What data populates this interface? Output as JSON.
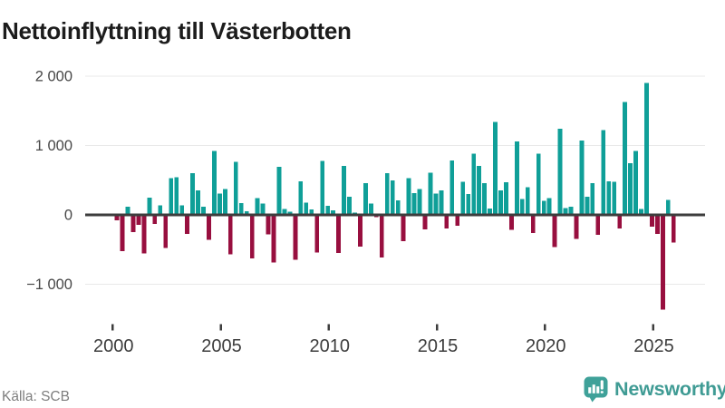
{
  "header": {
    "title": "Nettoinflyttning till Västerbotten"
  },
  "footer": {
    "source": "Källa: SCB",
    "brand": "Newsworthy"
  },
  "colors": {
    "positive": "#0f9f98",
    "negative": "#980f3f",
    "brand": "#3f9b94",
    "grid": "#e8e8e8",
    "zero_line": "#3d3d3d",
    "axis_text": "#424242",
    "title_text": "#1c1c1c",
    "source_text": "#7e7e7e"
  },
  "chart_data": {
    "type": "bar",
    "title": "Nettoinflyttning till Västerbotten",
    "ylabel": "",
    "xlabel": "",
    "unit": "net migration, persons per quarter",
    "frequency": "quarterly",
    "start": "2000 Q1",
    "end": "2025 Q4",
    "grid": true,
    "legend": false,
    "ylim": [
      -1500,
      2150
    ],
    "x_tick_labels": [
      "2000",
      "2005",
      "2010",
      "2015",
      "2020",
      "2025"
    ],
    "y_ticks": [
      {
        "value": 2000,
        "label": "2 000"
      },
      {
        "value": 1000,
        "label": "1 000"
      },
      {
        "value": 0,
        "label": "0"
      },
      {
        "value": -1000,
        "label": "−1 000"
      }
    ],
    "series_by_year": [
      {
        "year": 2000,
        "quarters": [
          -80,
          -520,
          115,
          -250
        ]
      },
      {
        "year": 2001,
        "quarters": [
          -145,
          -555,
          250,
          -130
        ]
      },
      {
        "year": 2002,
        "quarters": [
          140,
          -475,
          530,
          540
        ]
      },
      {
        "year": 2003,
        "quarters": [
          140,
          -275,
          600,
          355
        ]
      },
      {
        "year": 2004,
        "quarters": [
          120,
          -360,
          920,
          305
        ]
      },
      {
        "year": 2005,
        "quarters": [
          370,
          -570,
          765,
          170
        ]
      },
      {
        "year": 2006,
        "quarters": [
          50,
          -625,
          240,
          165
        ]
      },
      {
        "year": 2007,
        "quarters": [
          -280,
          -685,
          695,
          85
        ]
      },
      {
        "year": 2008,
        "quarters": [
          45,
          -650,
          485,
          175
        ]
      },
      {
        "year": 2009,
        "quarters": [
          80,
          -540,
          780,
          130
        ]
      },
      {
        "year": 2010,
        "quarters": [
          65,
          -550,
          705,
          260
        ]
      },
      {
        "year": 2011,
        "quarters": [
          30,
          -455,
          455,
          165
        ]
      },
      {
        "year": 2012,
        "quarters": [
          -35,
          -615,
          600,
          500
        ]
      },
      {
        "year": 2013,
        "quarters": [
          210,
          -380,
          530,
          315
        ]
      },
      {
        "year": 2014,
        "quarters": [
          375,
          -210,
          610,
          310
        ]
      },
      {
        "year": 2015,
        "quarters": [
          350,
          -195,
          785,
          -160
        ]
      },
      {
        "year": 2016,
        "quarters": [
          475,
          300,
          880,
          705
        ]
      },
      {
        "year": 2017,
        "quarters": [
          455,
          90,
          1340,
          355
        ]
      },
      {
        "year": 2018,
        "quarters": [
          470,
          -215,
          1060,
          230
        ]
      },
      {
        "year": 2019,
        "quarters": [
          400,
          -260,
          885,
          205
        ]
      },
      {
        "year": 2020,
        "quarters": [
          240,
          -465,
          1245,
          95
        ]
      },
      {
        "year": 2021,
        "quarters": [
          115,
          -345,
          1075,
          260
        ]
      },
      {
        "year": 2022,
        "quarters": [
          455,
          -290,
          1220,
          485
        ]
      },
      {
        "year": 2023,
        "quarters": [
          475,
          -195,
          1625,
          745
        ]
      },
      {
        "year": 2024,
        "quarters": [
          920,
          85,
          1905,
          -170
        ]
      },
      {
        "year": 2025,
        "quarters": [
          -275,
          -1365,
          215,
          -400
        ]
      }
    ]
  }
}
